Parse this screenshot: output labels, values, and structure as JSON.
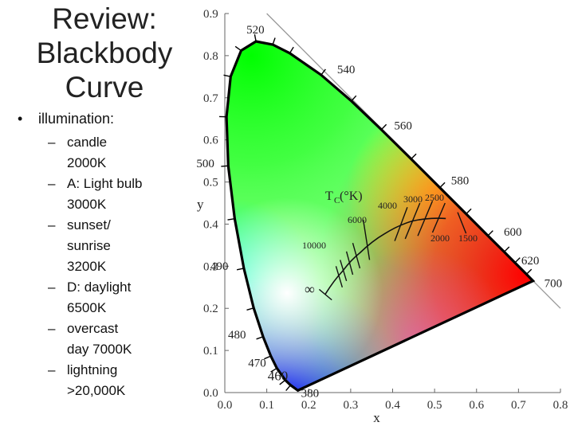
{
  "slide": {
    "title_lines": [
      "Review:",
      "Blackbody",
      "Curve"
    ],
    "bullet_dot": "•",
    "bullet": "illumination:",
    "dash": "–",
    "items": [
      [
        "candle",
        "2000K"
      ],
      [
        "A: Light bulb",
        "3000K"
      ],
      [
        "sunset/",
        "sunrise",
        "3200K"
      ],
      [
        "D: daylight",
        "6500K"
      ],
      [
        "overcast",
        "day 7000K"
      ],
      [
        "lightning",
        ">20,000K"
      ]
    ]
  },
  "chart_data": {
    "type": "chromaticity-diagram",
    "xlabel": "x",
    "ylabel": "y",
    "xlim": [
      0,
      0.8
    ],
    "ylim": [
      0,
      0.9
    ],
    "x_ticks": [
      "0.0",
      "0.1",
      "0.2",
      "0.3",
      "0.4",
      "0.5",
      "0.6",
      "0.7",
      "0.8"
    ],
    "y_ticks": [
      "0.0",
      "0.1",
      "0.2",
      "0.3",
      "0.4",
      "0.5",
      "0.6",
      "0.7",
      "0.8",
      "0.9"
    ],
    "wavelength_labels": [
      "380",
      "460",
      "470",
      "480",
      "490",
      "500",
      "520",
      "540",
      "560",
      "580",
      "600",
      "620",
      "700"
    ],
    "locus": [
      {
        "nm": 380,
        "x": 0.1741,
        "y": 0.005
      },
      {
        "nm": 450,
        "x": 0.1566,
        "y": 0.0177
      },
      {
        "nm": 460,
        "x": 0.144,
        "y": 0.0297
      },
      {
        "nm": 470,
        "x": 0.1241,
        "y": 0.0578
      },
      {
        "nm": 475,
        "x": 0.1096,
        "y": 0.0868
      },
      {
        "nm": 480,
        "x": 0.0913,
        "y": 0.1327
      },
      {
        "nm": 485,
        "x": 0.0687,
        "y": 0.2007
      },
      {
        "nm": 490,
        "x": 0.0454,
        "y": 0.295
      },
      {
        "nm": 495,
        "x": 0.0235,
        "y": 0.4127
      },
      {
        "nm": 500,
        "x": 0.0082,
        "y": 0.5384
      },
      {
        "nm": 505,
        "x": 0.0039,
        "y": 0.6548
      },
      {
        "nm": 510,
        "x": 0.0139,
        "y": 0.7502
      },
      {
        "nm": 515,
        "x": 0.0389,
        "y": 0.812
      },
      {
        "nm": 520,
        "x": 0.0743,
        "y": 0.8338
      },
      {
        "nm": 525,
        "x": 0.1142,
        "y": 0.8262
      },
      {
        "nm": 530,
        "x": 0.1547,
        "y": 0.8059
      },
      {
        "nm": 540,
        "x": 0.2296,
        "y": 0.7543
      },
      {
        "nm": 550,
        "x": 0.3016,
        "y": 0.6923
      },
      {
        "nm": 560,
        "x": 0.3731,
        "y": 0.6245
      },
      {
        "nm": 570,
        "x": 0.4441,
        "y": 0.5547
      },
      {
        "nm": 580,
        "x": 0.5125,
        "y": 0.4866
      },
      {
        "nm": 590,
        "x": 0.5752,
        "y": 0.4242
      },
      {
        "nm": 600,
        "x": 0.627,
        "y": 0.3725
      },
      {
        "nm": 610,
        "x": 0.6658,
        "y": 0.334
      },
      {
        "nm": 620,
        "x": 0.6915,
        "y": 0.3083
      },
      {
        "nm": 640,
        "x": 0.719,
        "y": 0.2809
      },
      {
        "nm": 700,
        "x": 0.7347,
        "y": 0.2653
      }
    ],
    "planckian_locus": [
      {
        "x": 0.5267,
        "y": 0.4133
      },
      {
        "x": 0.4476,
        "y": 0.4074
      },
      {
        "x": 0.3805,
        "y": 0.3768
      },
      {
        "x": 0.3221,
        "y": 0.3318
      },
      {
        "x": 0.2807,
        "y": 0.2883
      },
      {
        "x": 0.2399,
        "y": 0.234
      }
    ],
    "isotherm_labels": [
      "T",
      "C",
      "(°K)",
      "2500",
      "3000",
      "4000",
      "6000",
      "10000",
      "2000",
      "1500",
      "∞"
    ]
  },
  "colors": {
    "locus_stroke": "#000000",
    "axis": "#666666",
    "tick_text": "#333333",
    "label_text": "#222222",
    "planck": "#111111",
    "diag_line": "#999999"
  }
}
